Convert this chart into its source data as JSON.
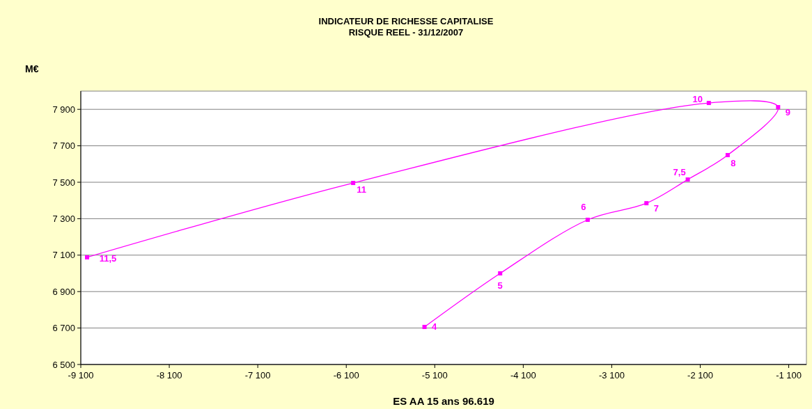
{
  "chart_data": {
    "type": "line",
    "title": "INDICATEUR DE RICHESSE CAPITALISE\nRISQUE REEL - 31/12/2007",
    "ylabel": "M€",
    "xlabel": "ES AA 15 ans 96.619",
    "series": [
      {
        "color": "#ff00ff",
        "x": [
          -5216,
          -4361,
          -3372,
          -2708,
          -2241,
          -1790,
          -1220,
          -2003,
          -6022,
          -9029
        ],
        "values": [
          6706,
          7000,
          7294,
          7385,
          7515,
          7649,
          7912,
          7935,
          7496,
          7088
        ]
      }
    ],
    "annotations": [
      {
        "text": "4",
        "x": -5216,
        "y": 6706
      },
      {
        "text": "5",
        "x": -4361,
        "y": 7000
      },
      {
        "text": "6",
        "x": -3372,
        "y": 7294
      },
      {
        "text": "7",
        "x": -2708,
        "y": 7385
      },
      {
        "text": "7,5",
        "x": -2241,
        "y": 7515
      },
      {
        "text": "8",
        "x": -1790,
        "y": 7649
      },
      {
        "text": "9",
        "x": -1220,
        "y": 7912
      },
      {
        "text": "10",
        "x": -2003,
        "y": 7935
      },
      {
        "text": "11",
        "x": -6022,
        "y": 7496
      },
      {
        "text": "11,5",
        "x": -9029,
        "y": 7088
      }
    ],
    "xlim": [
      -9100,
      -900
    ],
    "xticks": [
      {
        "value": -9100,
        "label": "-9 100"
      },
      {
        "value": -8100,
        "label": "-8 100"
      },
      {
        "value": -7100,
        "label": "-7 100"
      },
      {
        "value": -6100,
        "label": "-6 100"
      },
      {
        "value": -5100,
        "label": "-5 100"
      },
      {
        "value": -4100,
        "label": "-4 100"
      },
      {
        "value": -3100,
        "label": "-3 100"
      },
      {
        "value": -2100,
        "label": "-2 100"
      },
      {
        "value": -1100,
        "label": "-1 100"
      }
    ],
    "ylim": [
      6500,
      8000
    ],
    "yticks": [
      {
        "value": 6500,
        "label": "6 500"
      },
      {
        "value": 6700,
        "label": "6 700"
      },
      {
        "value": 6900,
        "label": "6 900"
      },
      {
        "value": 7100,
        "label": "7 100"
      },
      {
        "value": 7300,
        "label": "7 300"
      },
      {
        "value": 7500,
        "label": "7 500"
      },
      {
        "value": 7700,
        "label": "7 700"
      },
      {
        "value": 7900,
        "label": "7 900"
      }
    ],
    "grid": "y",
    "marker": "square",
    "line_style": "solid"
  }
}
